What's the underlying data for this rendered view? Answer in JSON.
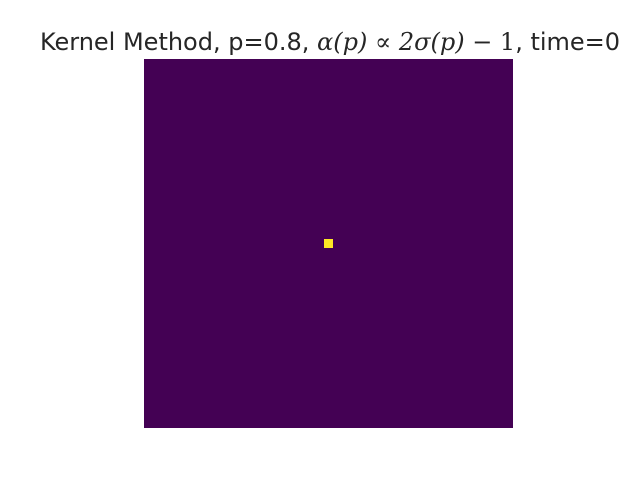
{
  "figure": {
    "title_parts": [
      {
        "text": "Kernel Method, p=0.8, ",
        "style": "plain"
      },
      {
        "text": "α(p)",
        "style": "math"
      },
      {
        "text": " ∝ ",
        "style": "upright"
      },
      {
        "text": "2σ(p)",
        "style": "math"
      },
      {
        "text": " − 1",
        "style": "upright"
      },
      {
        "text": ", time=0",
        "style": "plain"
      }
    ]
  },
  "chart_data": {
    "type": "heatmap",
    "title": "Kernel Method, p=0.8, α(p) ∝ 2σ(p) − 1, time=0",
    "xlabel": "",
    "ylabel": "",
    "axes_visible": false,
    "grid": false,
    "colormap": "viridis",
    "background_value": 0,
    "background_color": "#440154",
    "grid_size": [
      41,
      41
    ],
    "active_cells": [
      {
        "row": 20,
        "col": 20,
        "value": 1,
        "color": "#fde725"
      }
    ]
  }
}
